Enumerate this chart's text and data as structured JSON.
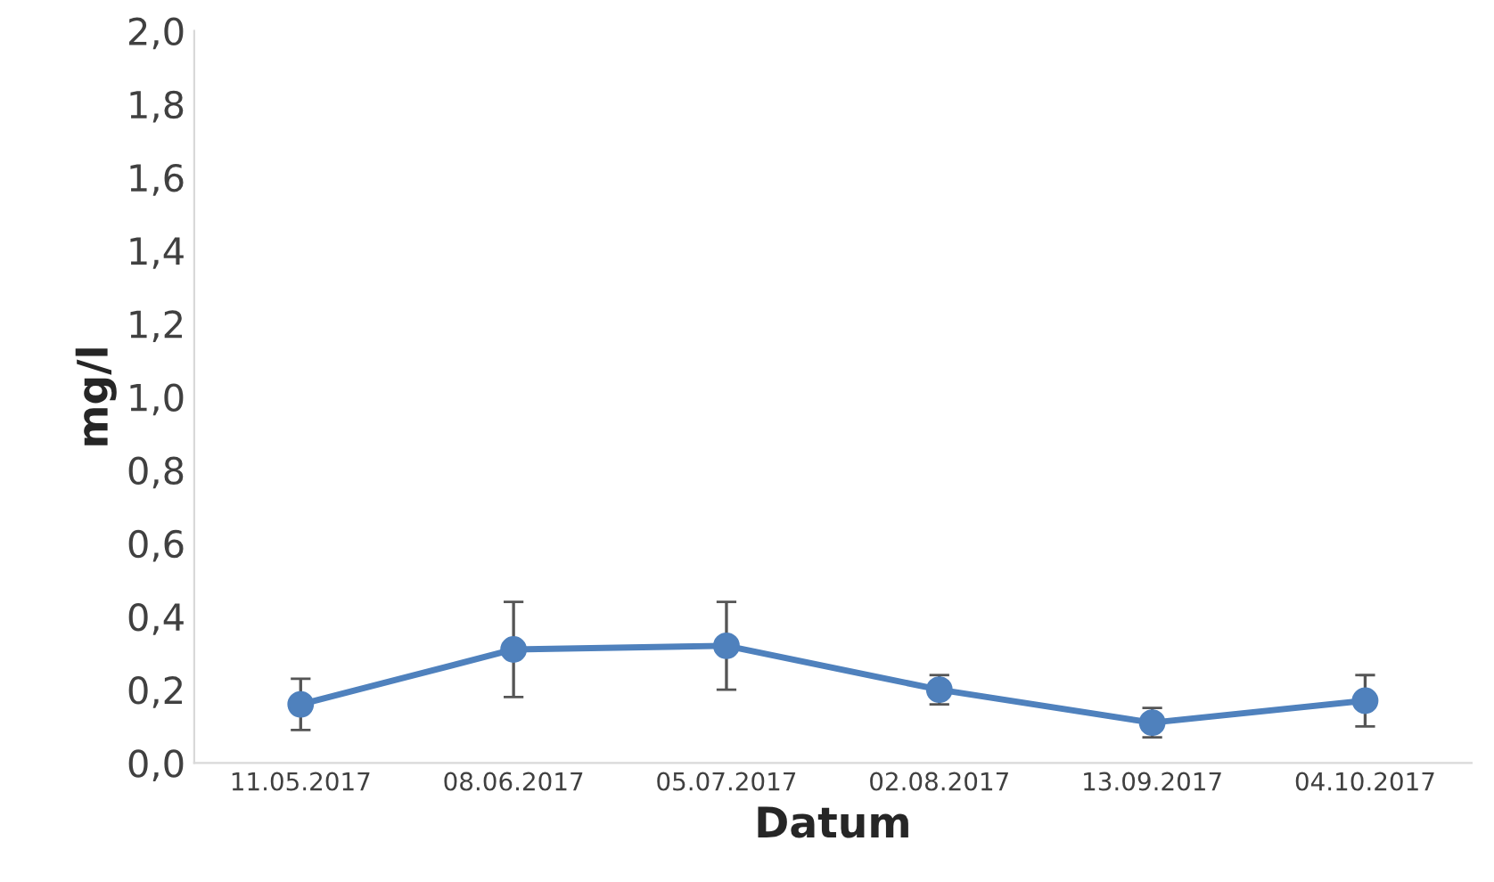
{
  "chart_data": {
    "type": "line",
    "xlabel": "Datum",
    "ylabel": "mg/l",
    "categories": [
      "11.05.2017",
      "08.06.2017",
      "05.07.2017",
      "02.08.2017",
      "13.09.2017",
      "04.10.2017"
    ],
    "series": [
      {
        "color": "#4f81bd",
        "values": [
          0.16,
          0.31,
          0.32,
          0.2,
          0.11,
          0.17
        ],
        "errors": [
          [
            0.09,
            0.23
          ],
          [
            0.18,
            0.44
          ],
          [
            0.2,
            0.44
          ],
          [
            0.16,
            0.24
          ],
          [
            0.07,
            0.15
          ],
          [
            0.1,
            0.24
          ]
        ]
      }
    ],
    "marker": "circle",
    "line_style": "solid",
    "grid": false,
    "ylim": [
      0,
      2
    ],
    "yticks": [
      {
        "value": 0,
        "label": "0,0"
      },
      {
        "value": 0.2,
        "label": "0,2"
      },
      {
        "value": 0.4,
        "label": "0,4"
      },
      {
        "value": 0.6,
        "label": "0,6"
      },
      {
        "value": 0.8,
        "label": "0,8"
      },
      {
        "value": 1.0,
        "label": "1,0"
      },
      {
        "value": 1.2,
        "label": "1,2"
      },
      {
        "value": 1.4,
        "label": "1,4"
      },
      {
        "value": 1.6,
        "label": "1,6"
      },
      {
        "value": 1.8,
        "label": "1,8"
      },
      {
        "value": 2.0,
        "label": "2,0"
      }
    ]
  }
}
